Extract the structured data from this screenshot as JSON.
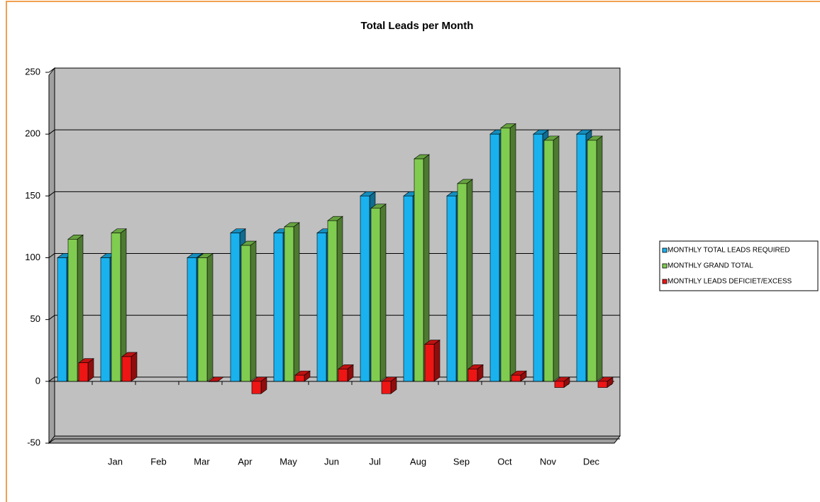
{
  "chart_data": {
    "type": "bar3d",
    "title": "Total Leads per Month",
    "categories": [
      null,
      "Jan",
      "Feb",
      "Mar",
      "Apr",
      "May",
      "Jun",
      "Jul",
      "Aug",
      "Sep",
      "Oct",
      "Nov",
      "Dec"
    ],
    "series": [
      {
        "name": "MONTHLY TOTAL LEADS REQUIRED",
        "color": "#19b2ee",
        "values": [
          100,
          100,
          null,
          100,
          120,
          120,
          120,
          150,
          150,
          150,
          200,
          200,
          200
        ]
      },
      {
        "name": "MONTHLY GRAND TOTAL",
        "color": "#80cc50",
        "values": [
          115,
          120,
          null,
          100,
          110,
          125,
          130,
          140,
          180,
          160,
          205,
          195,
          195
        ]
      },
      {
        "name": "MONTHLY LEADS DEFICIET/EXCESS",
        "color": "#ee1515",
        "values": [
          15,
          20,
          null,
          0,
          -10,
          5,
          10,
          -10,
          30,
          10,
          5,
          -5,
          -5
        ]
      }
    ],
    "ylim": [
      -50,
      250
    ],
    "yticks": [
      -50,
      0,
      50,
      100,
      150,
      200,
      250
    ],
    "grid": true,
    "legend": "right"
  }
}
